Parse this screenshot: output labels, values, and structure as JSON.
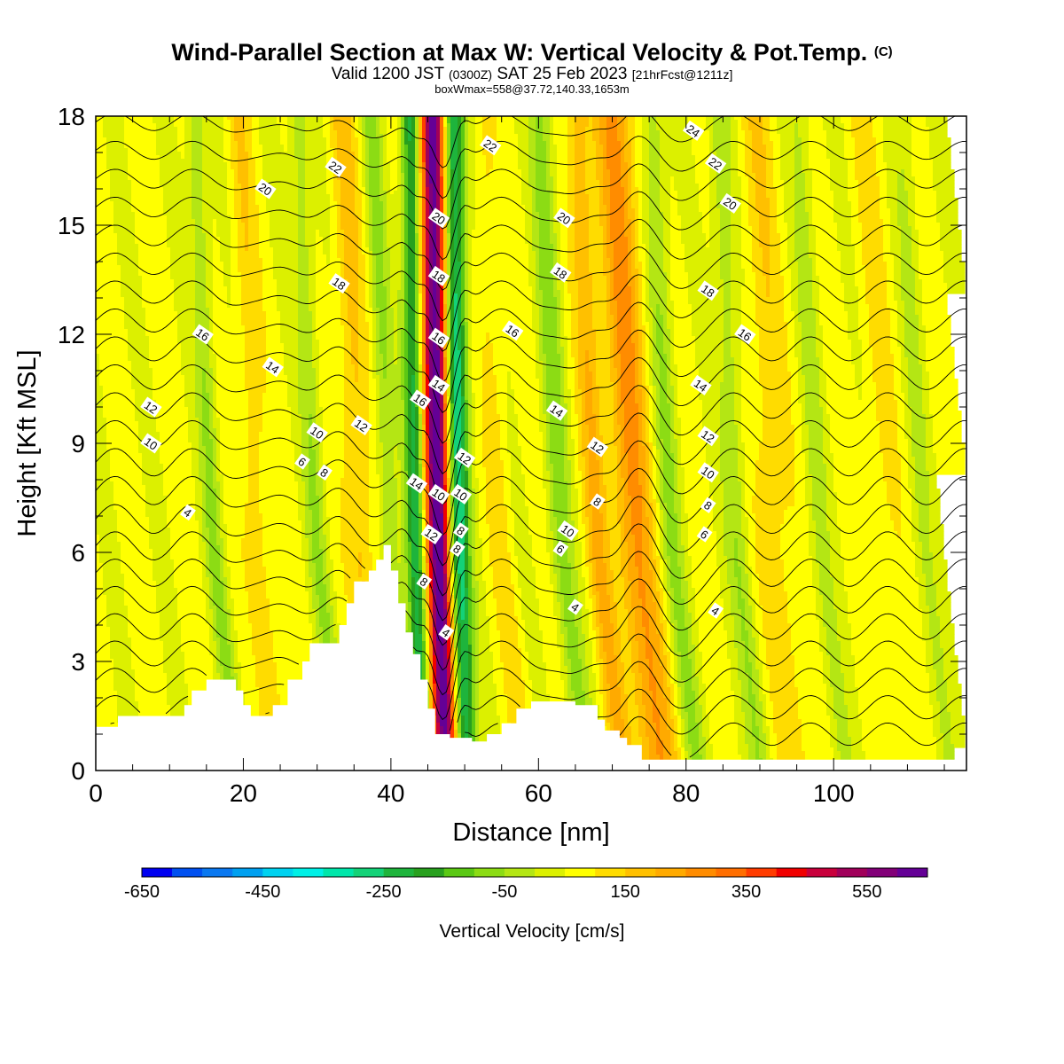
{
  "header": {
    "title": "Wind-Parallel Section at Max W: Vertical Velocity & Pot.Temp.",
    "title_mark": "(C)",
    "subtitle_a": "Valid 1200 JST",
    "subtitle_b": "(0300Z)",
    "subtitle_c": "SAT 25 Feb 2023",
    "subtitle_d": "[21hrFcst@1211z]",
    "box_line": "boxWmax=558@37.72,140.33,1653m"
  },
  "chart_data": {
    "type": "heatmap",
    "xlabel": "Distance [nm]",
    "ylabel": "Height [Kft MSL]",
    "xlim": [
      0,
      118
    ],
    "ylim": [
      0,
      18
    ],
    "x_ticks": [
      0,
      20,
      40,
      60,
      80,
      100
    ],
    "y_ticks": [
      0,
      3,
      6,
      9,
      12,
      15,
      18
    ],
    "colorbar": {
      "label": "Vertical Velocity [cm/s]",
      "tick_labels": [
        "-650",
        "-450",
        "-250",
        "-50",
        "150",
        "350",
        "550"
      ],
      "tick_values": [
        -650,
        -450,
        -250,
        -50,
        150,
        350,
        550
      ],
      "range": [
        -650,
        650
      ],
      "colors": [
        "#0000f0",
        "#0050f0",
        "#0a78f0",
        "#00a0f0",
        "#00d2f0",
        "#00f0e6",
        "#00e6aa",
        "#14d278",
        "#1eb43c",
        "#28a01e",
        "#5ac814",
        "#8cdc14",
        "#b4e614",
        "#dcf000",
        "#ffff00",
        "#ffdc00",
        "#ffc000",
        "#ffaa00",
        "#ff8c00",
        "#ff6e00",
        "#ff3c00",
        "#f00000",
        "#c8003c",
        "#a0005a",
        "#820078",
        "#640096"
      ]
    },
    "updraft_bands": [
      {
        "x": 46.5,
        "w": 2.0,
        "strength": 620
      },
      {
        "x": 73.0,
        "w": 2.6,
        "strength": 200
      },
      {
        "x": 36.0,
        "w": 1.8,
        "strength": 110
      },
      {
        "x": 22.0,
        "w": 1.6,
        "strength": 80
      },
      {
        "x": 68.0,
        "w": 1.6,
        "strength": 130
      },
      {
        "x": 55.0,
        "w": 1.5,
        "strength": 60
      },
      {
        "x": 92.0,
        "w": 2.4,
        "strength": 80
      },
      {
        "x": 107.0,
        "w": 2.2,
        "strength": 50
      }
    ],
    "downdraft_bands": [
      {
        "x": 49.0,
        "w": 1.6,
        "strength": -420
      },
      {
        "x": 43.5,
        "w": 1.4,
        "strength": -320
      },
      {
        "x": 63.0,
        "w": 1.6,
        "strength": -130
      },
      {
        "x": 40.0,
        "w": 1.3,
        "strength": -120
      },
      {
        "x": 30.0,
        "w": 1.4,
        "strength": -100
      },
      {
        "x": 16.0,
        "w": 1.3,
        "strength": -110
      },
      {
        "x": 78.0,
        "w": 1.6,
        "strength": -110
      },
      {
        "x": 87.0,
        "w": 1.6,
        "strength": -100
      },
      {
        "x": 98.0,
        "w": 1.5,
        "strength": -70
      },
      {
        "x": 112.0,
        "w": 1.5,
        "strength": -60
      }
    ],
    "terrain": [
      [
        0,
        1.2
      ],
      [
        3,
        1.2
      ],
      [
        3,
        1.5
      ],
      [
        12,
        1.5
      ],
      [
        12,
        1.8
      ],
      [
        13,
        1.8
      ],
      [
        13,
        2.2
      ],
      [
        15,
        2.2
      ],
      [
        15,
        2.5
      ],
      [
        19,
        2.5
      ],
      [
        19,
        2.2
      ],
      [
        20,
        2.2
      ],
      [
        20,
        1.8
      ],
      [
        21,
        1.8
      ],
      [
        21,
        1.5
      ],
      [
        24,
        1.5
      ],
      [
        24,
        1.8
      ],
      [
        26,
        1.8
      ],
      [
        26,
        2.5
      ],
      [
        28,
        2.5
      ],
      [
        28,
        3.0
      ],
      [
        29,
        3.0
      ],
      [
        29,
        3.5
      ],
      [
        33,
        3.5
      ],
      [
        33,
        4.0
      ],
      [
        34,
        4.0
      ],
      [
        34,
        4.6
      ],
      [
        35,
        4.6
      ],
      [
        35,
        5.2
      ],
      [
        37,
        5.2
      ],
      [
        37,
        5.5
      ],
      [
        38,
        5.5
      ],
      [
        38,
        5.8
      ],
      [
        39,
        5.8
      ],
      [
        39,
        6.2
      ],
      [
        40,
        6.2
      ],
      [
        40,
        5.5
      ],
      [
        41,
        5.5
      ],
      [
        41,
        4.6
      ],
      [
        42,
        4.6
      ],
      [
        42,
        3.8
      ],
      [
        43,
        3.8
      ],
      [
        43,
        3.2
      ],
      [
        44,
        3.2
      ],
      [
        44,
        2.5
      ],
      [
        45,
        2.5
      ],
      [
        45,
        1.7
      ],
      [
        46,
        1.7
      ],
      [
        46,
        1.0
      ],
      [
        48,
        1.0
      ],
      [
        48,
        0.9
      ],
      [
        51,
        0.9
      ],
      [
        51,
        0.8
      ],
      [
        53,
        0.8
      ],
      [
        53,
        1.0
      ],
      [
        55,
        1.0
      ],
      [
        55,
        1.3
      ],
      [
        57,
        1.3
      ],
      [
        57,
        1.7
      ],
      [
        59,
        1.7
      ],
      [
        59,
        1.9
      ],
      [
        65,
        1.9
      ],
      [
        65,
        1.8
      ],
      [
        68,
        1.8
      ],
      [
        68,
        1.4
      ],
      [
        69,
        1.4
      ],
      [
        69,
        1.1
      ],
      [
        71,
        1.1
      ],
      [
        71,
        0.9
      ],
      [
        72,
        0.9
      ],
      [
        72,
        0.7
      ],
      [
        74,
        0.7
      ],
      [
        74,
        0.3
      ],
      [
        118,
        0.3
      ]
    ],
    "theta_levels": [
      2,
      3,
      4,
      5,
      6,
      7,
      8,
      9,
      10,
      11,
      12,
      13,
      14,
      15,
      16,
      17,
      18,
      19,
      20,
      21,
      22,
      23,
      24
    ],
    "contour_labels": [
      {
        "x": 12.5,
        "y": 7.1,
        "v": "4"
      },
      {
        "x": 28.0,
        "y": 8.5,
        "v": "6"
      },
      {
        "x": 31.0,
        "y": 8.2,
        "v": "8"
      },
      {
        "x": 7.5,
        "y": 9.0,
        "v": "10"
      },
      {
        "x": 30.0,
        "y": 9.3,
        "v": "10"
      },
      {
        "x": 7.5,
        "y": 10.0,
        "v": "12"
      },
      {
        "x": 36.0,
        "y": 9.5,
        "v": "12"
      },
      {
        "x": 24.0,
        "y": 11.1,
        "v": "14"
      },
      {
        "x": 14.5,
        "y": 12.0,
        "v": "16"
      },
      {
        "x": 33.0,
        "y": 13.4,
        "v": "18"
      },
      {
        "x": 23.0,
        "y": 16.0,
        "v": "20"
      },
      {
        "x": 32.5,
        "y": 16.6,
        "v": "22"
      },
      {
        "x": 44.0,
        "y": 10.2,
        "v": "16"
      },
      {
        "x": 43.5,
        "y": 7.9,
        "v": "14"
      },
      {
        "x": 46.5,
        "y": 7.6,
        "v": "10"
      },
      {
        "x": 45.5,
        "y": 6.5,
        "v": "12"
      },
      {
        "x": 44.5,
        "y": 5.2,
        "v": "8"
      },
      {
        "x": 47.5,
        "y": 3.8,
        "v": "4"
      },
      {
        "x": 46.5,
        "y": 10.6,
        "v": "14"
      },
      {
        "x": 46.5,
        "y": 11.9,
        "v": "16"
      },
      {
        "x": 46.5,
        "y": 13.6,
        "v": "18"
      },
      {
        "x": 46.5,
        "y": 15.2,
        "v": "20"
      },
      {
        "x": 50.0,
        "y": 8.6,
        "v": "12"
      },
      {
        "x": 49.5,
        "y": 7.6,
        "v": "10"
      },
      {
        "x": 49.5,
        "y": 6.6,
        "v": "8"
      },
      {
        "x": 49.0,
        "y": 6.1,
        "v": "8"
      },
      {
        "x": 53.5,
        "y": 17.2,
        "v": "22"
      },
      {
        "x": 56.5,
        "y": 12.1,
        "v": "16"
      },
      {
        "x": 62.5,
        "y": 9.9,
        "v": "14"
      },
      {
        "x": 63.0,
        "y": 13.7,
        "v": "18"
      },
      {
        "x": 63.5,
        "y": 15.2,
        "v": "20"
      },
      {
        "x": 68.0,
        "y": 8.9,
        "v": "12"
      },
      {
        "x": 68.0,
        "y": 7.4,
        "v": "8"
      },
      {
        "x": 64.0,
        "y": 6.6,
        "v": "10"
      },
      {
        "x": 63.0,
        "y": 6.1,
        "v": "6"
      },
      {
        "x": 65.0,
        "y": 4.5,
        "v": "4"
      },
      {
        "x": 81.0,
        "y": 17.6,
        "v": "24"
      },
      {
        "x": 84.0,
        "y": 16.7,
        "v": "22"
      },
      {
        "x": 86.0,
        "y": 15.6,
        "v": "20"
      },
      {
        "x": 83.0,
        "y": 13.2,
        "v": "18"
      },
      {
        "x": 88.0,
        "y": 12.0,
        "v": "16"
      },
      {
        "x": 82.0,
        "y": 10.6,
        "v": "14"
      },
      {
        "x": 83.0,
        "y": 9.2,
        "v": "12"
      },
      {
        "x": 83.0,
        "y": 8.2,
        "v": "10"
      },
      {
        "x": 83.0,
        "y": 7.3,
        "v": "8"
      },
      {
        "x": 82.5,
        "y": 6.5,
        "v": "6"
      },
      {
        "x": 84.0,
        "y": 4.4,
        "v": "4"
      }
    ]
  }
}
